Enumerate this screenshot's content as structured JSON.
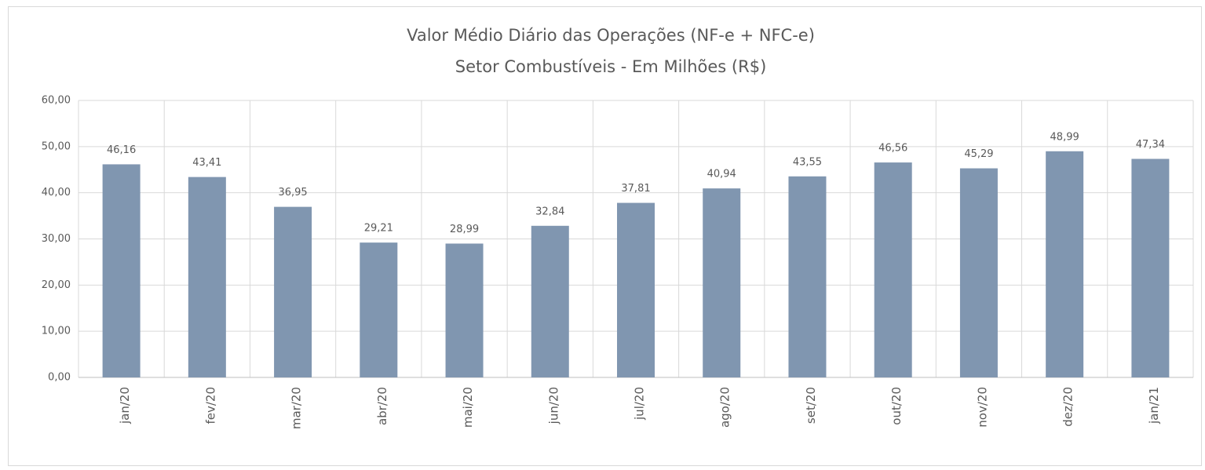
{
  "chart_data": {
    "type": "bar",
    "title": "Valor Médio Diário das Operações (NF-e + NFC-e)",
    "subtitle": "Setor Combustíveis - Em Milhões (R$)",
    "categories": [
      "jan/20",
      "fev/20",
      "mar/20",
      "abr/20",
      "mai/20",
      "jun/20",
      "jul/20",
      "ago/20",
      "set/20",
      "out/20",
      "nov/20",
      "dez/20",
      "jan/21"
    ],
    "values": [
      46.16,
      43.41,
      36.95,
      29.21,
      28.99,
      32.84,
      37.81,
      40.94,
      43.55,
      46.56,
      45.29,
      48.99,
      47.34
    ],
    "value_labels": [
      "46,16",
      "43,41",
      "36,95",
      "29,21",
      "28,99",
      "32,84",
      "37,81",
      "40,94",
      "43,55",
      "46,56",
      "45,29",
      "48,99",
      "47,34"
    ],
    "color": "#8096b0",
    "ylim": [
      0,
      60
    ],
    "yticks": [
      {
        "value": 0,
        "label": "0,00"
      },
      {
        "value": 10,
        "label": "10,00"
      },
      {
        "value": 20,
        "label": "20,00"
      },
      {
        "value": 30,
        "label": "30,00"
      },
      {
        "value": 40,
        "label": "40,00"
      },
      {
        "value": 50,
        "label": "50,00"
      },
      {
        "value": 60,
        "label": "60,00"
      }
    ],
    "grid": true
  }
}
